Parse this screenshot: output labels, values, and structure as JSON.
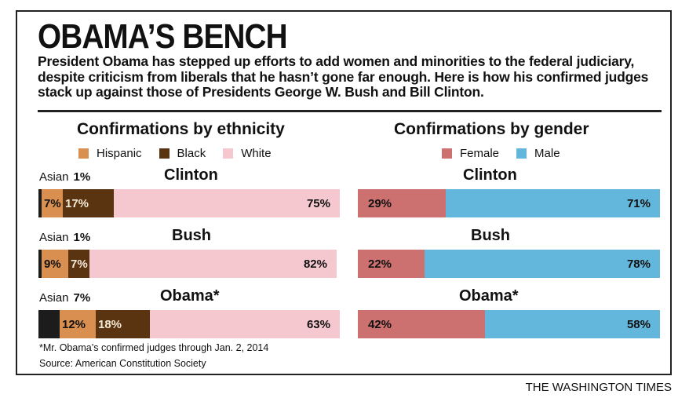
{
  "title": "OBAMA’S BENCH",
  "subtitle": "President Obama has stepped up efforts to add women and minorities to the federal judiciary, despite criticism from liberals that he hasn’t gone far enough. Here is how his confirmed judges stack up against those of Presidents George W. Bush and Bill Clinton.",
  "footnote": "*Mr. Obama’s confirmed judges through Jan. 2, 2014",
  "source": "Source: American Constitution Society",
  "brand": "THE WASHINGTON TIMES",
  "asian_prefix": "Asian",
  "colors": {
    "asian": "#1c1c1c",
    "hispanic": "#d98f4f",
    "black": "#5a3310",
    "white": "#f5c8cf",
    "female": "#cc7070",
    "male": "#64b7dc"
  },
  "chart_data": [
    {
      "type": "bar",
      "stacked": true,
      "orientation": "horizontal",
      "title": "Confirmations by ethnicity",
      "categories": [
        "Clinton",
        "Bush",
        "Obama*"
      ],
      "legend": [
        "Hispanic",
        "Black",
        "White"
      ],
      "series": [
        {
          "name": "Asian",
          "values": [
            1,
            1,
            7
          ],
          "color": "#1c1c1c",
          "labels": [
            "1%",
            "1%",
            "7%"
          ]
        },
        {
          "name": "Hispanic",
          "values": [
            7,
            9,
            12
          ],
          "color": "#d98f4f",
          "labels": [
            "7%",
            "9%",
            "12%"
          ]
        },
        {
          "name": "Black",
          "values": [
            17,
            7,
            18
          ],
          "color": "#5a3310",
          "labels": [
            "17%",
            "7%",
            "18%"
          ]
        },
        {
          "name": "White",
          "values": [
            75,
            82,
            63
          ],
          "color": "#f5c8cf",
          "labels": [
            "75%",
            "82%",
            "63%"
          ]
        }
      ]
    },
    {
      "type": "bar",
      "stacked": true,
      "orientation": "horizontal",
      "title": "Confirmations by gender",
      "categories": [
        "Clinton",
        "Bush",
        "Obama*"
      ],
      "legend": [
        "Female",
        "Male"
      ],
      "series": [
        {
          "name": "Female",
          "values": [
            29,
            22,
            42
          ],
          "color": "#cc7070",
          "labels": [
            "29%",
            "22%",
            "42%"
          ]
        },
        {
          "name": "Male",
          "values": [
            71,
            78,
            58
          ],
          "color": "#64b7dc",
          "labels": [
            "71%",
            "78%",
            "58%"
          ]
        }
      ]
    }
  ]
}
